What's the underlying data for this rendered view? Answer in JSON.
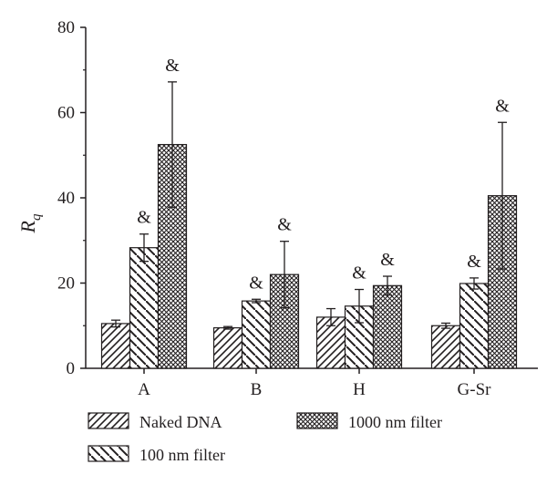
{
  "chart_data": {
    "type": "bar",
    "categories": [
      "A",
      "B",
      "H",
      "G-Sr"
    ],
    "ylabel": "R",
    "ylabel_subscript": "q",
    "ylim": [
      0,
      80
    ],
    "yticks": [
      "0",
      "20",
      "40",
      "60",
      "80"
    ],
    "series": [
      {
        "name": "Naked DNA",
        "pattern": "diagonal",
        "values": [
          10.5,
          9.5,
          12.0,
          10.0
        ],
        "errors": [
          0.8,
          0.3,
          2.0,
          0.6
        ],
        "annotations": [
          "",
          "",
          "",
          ""
        ]
      },
      {
        "name": "100 nm filter",
        "pattern": "back-diagonal",
        "values": [
          28.3,
          15.8,
          14.6,
          19.9
        ],
        "errors": [
          3.2,
          0.4,
          3.9,
          1.3
        ],
        "annotations": [
          "&",
          "&",
          "&",
          "&"
        ]
      },
      {
        "name": "1000 nm filter",
        "pattern": "crosshatch",
        "values": [
          52.5,
          22.0,
          19.4,
          40.5
        ],
        "errors": [
          14.7,
          7.8,
          2.2,
          17.2
        ],
        "annotations": [
          "&",
          "&",
          "&",
          "&"
        ]
      }
    ],
    "legend": "bottom",
    "grid": false
  }
}
